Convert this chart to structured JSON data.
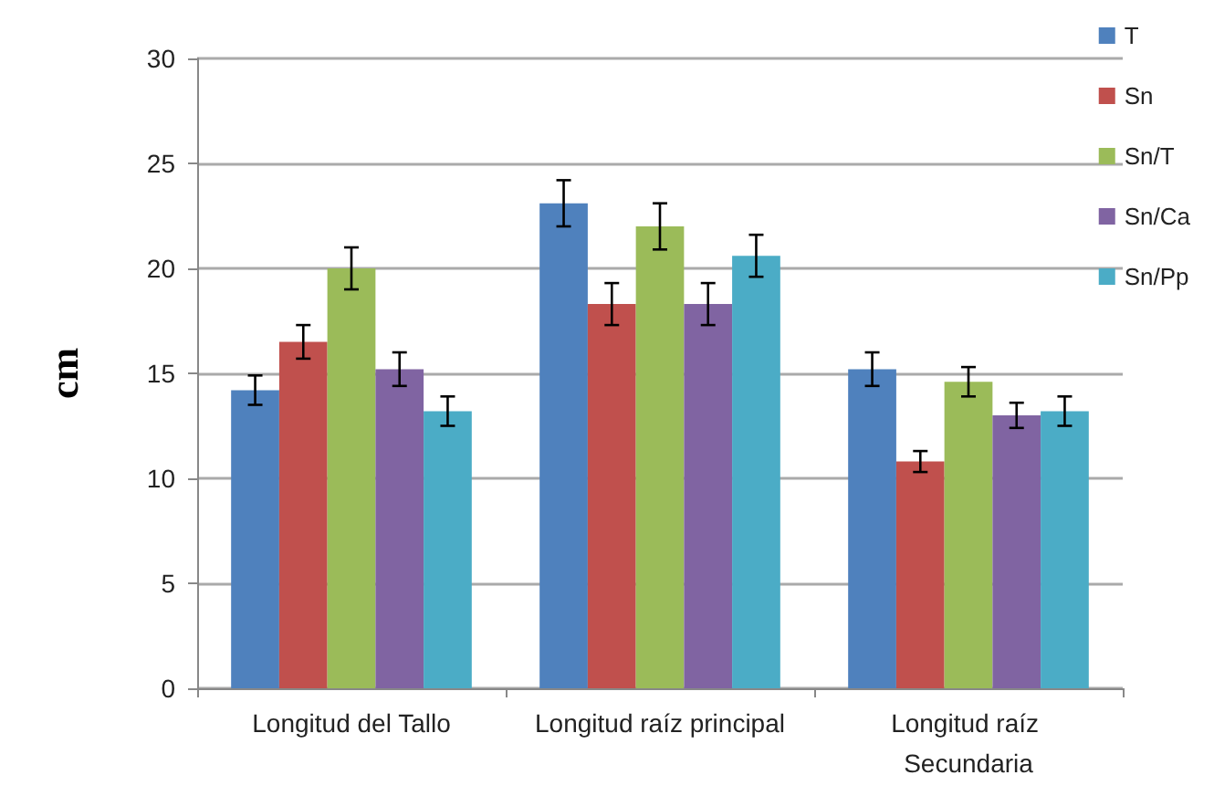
{
  "chart_data": {
    "type": "bar",
    "ylabel": "cm",
    "categories": [
      "Longitud del Tallo",
      "Longitud raíz principal",
      "Longitud raíz Secundaria"
    ],
    "series": [
      {
        "name": "T",
        "color": "#4f81bd",
        "values": [
          14.2,
          23.1,
          15.2
        ],
        "errors": [
          0.7,
          1.1,
          0.8
        ]
      },
      {
        "name": "Sn",
        "color": "#c0504d",
        "values": [
          16.5,
          18.3,
          10.8
        ],
        "errors": [
          0.8,
          1.0,
          0.5
        ]
      },
      {
        "name": "Sn/T",
        "color": "#9bbb59",
        "values": [
          20.0,
          22.0,
          14.6
        ],
        "errors": [
          1.0,
          1.1,
          0.7
        ]
      },
      {
        "name": "Sn/Ca",
        "color": "#8064a2",
        "values": [
          15.2,
          18.3,
          13.0
        ],
        "errors": [
          0.8,
          1.0,
          0.6
        ]
      },
      {
        "name": "Sn/Pp",
        "color": "#4bacc6",
        "values": [
          13.2,
          20.6,
          13.2
        ],
        "errors": [
          0.7,
          1.0,
          0.7
        ]
      }
    ],
    "ylim": [
      0,
      30
    ],
    "yticks": [
      0,
      5,
      10,
      15,
      20,
      25,
      30
    ],
    "grid": "y",
    "legend": "top right"
  }
}
